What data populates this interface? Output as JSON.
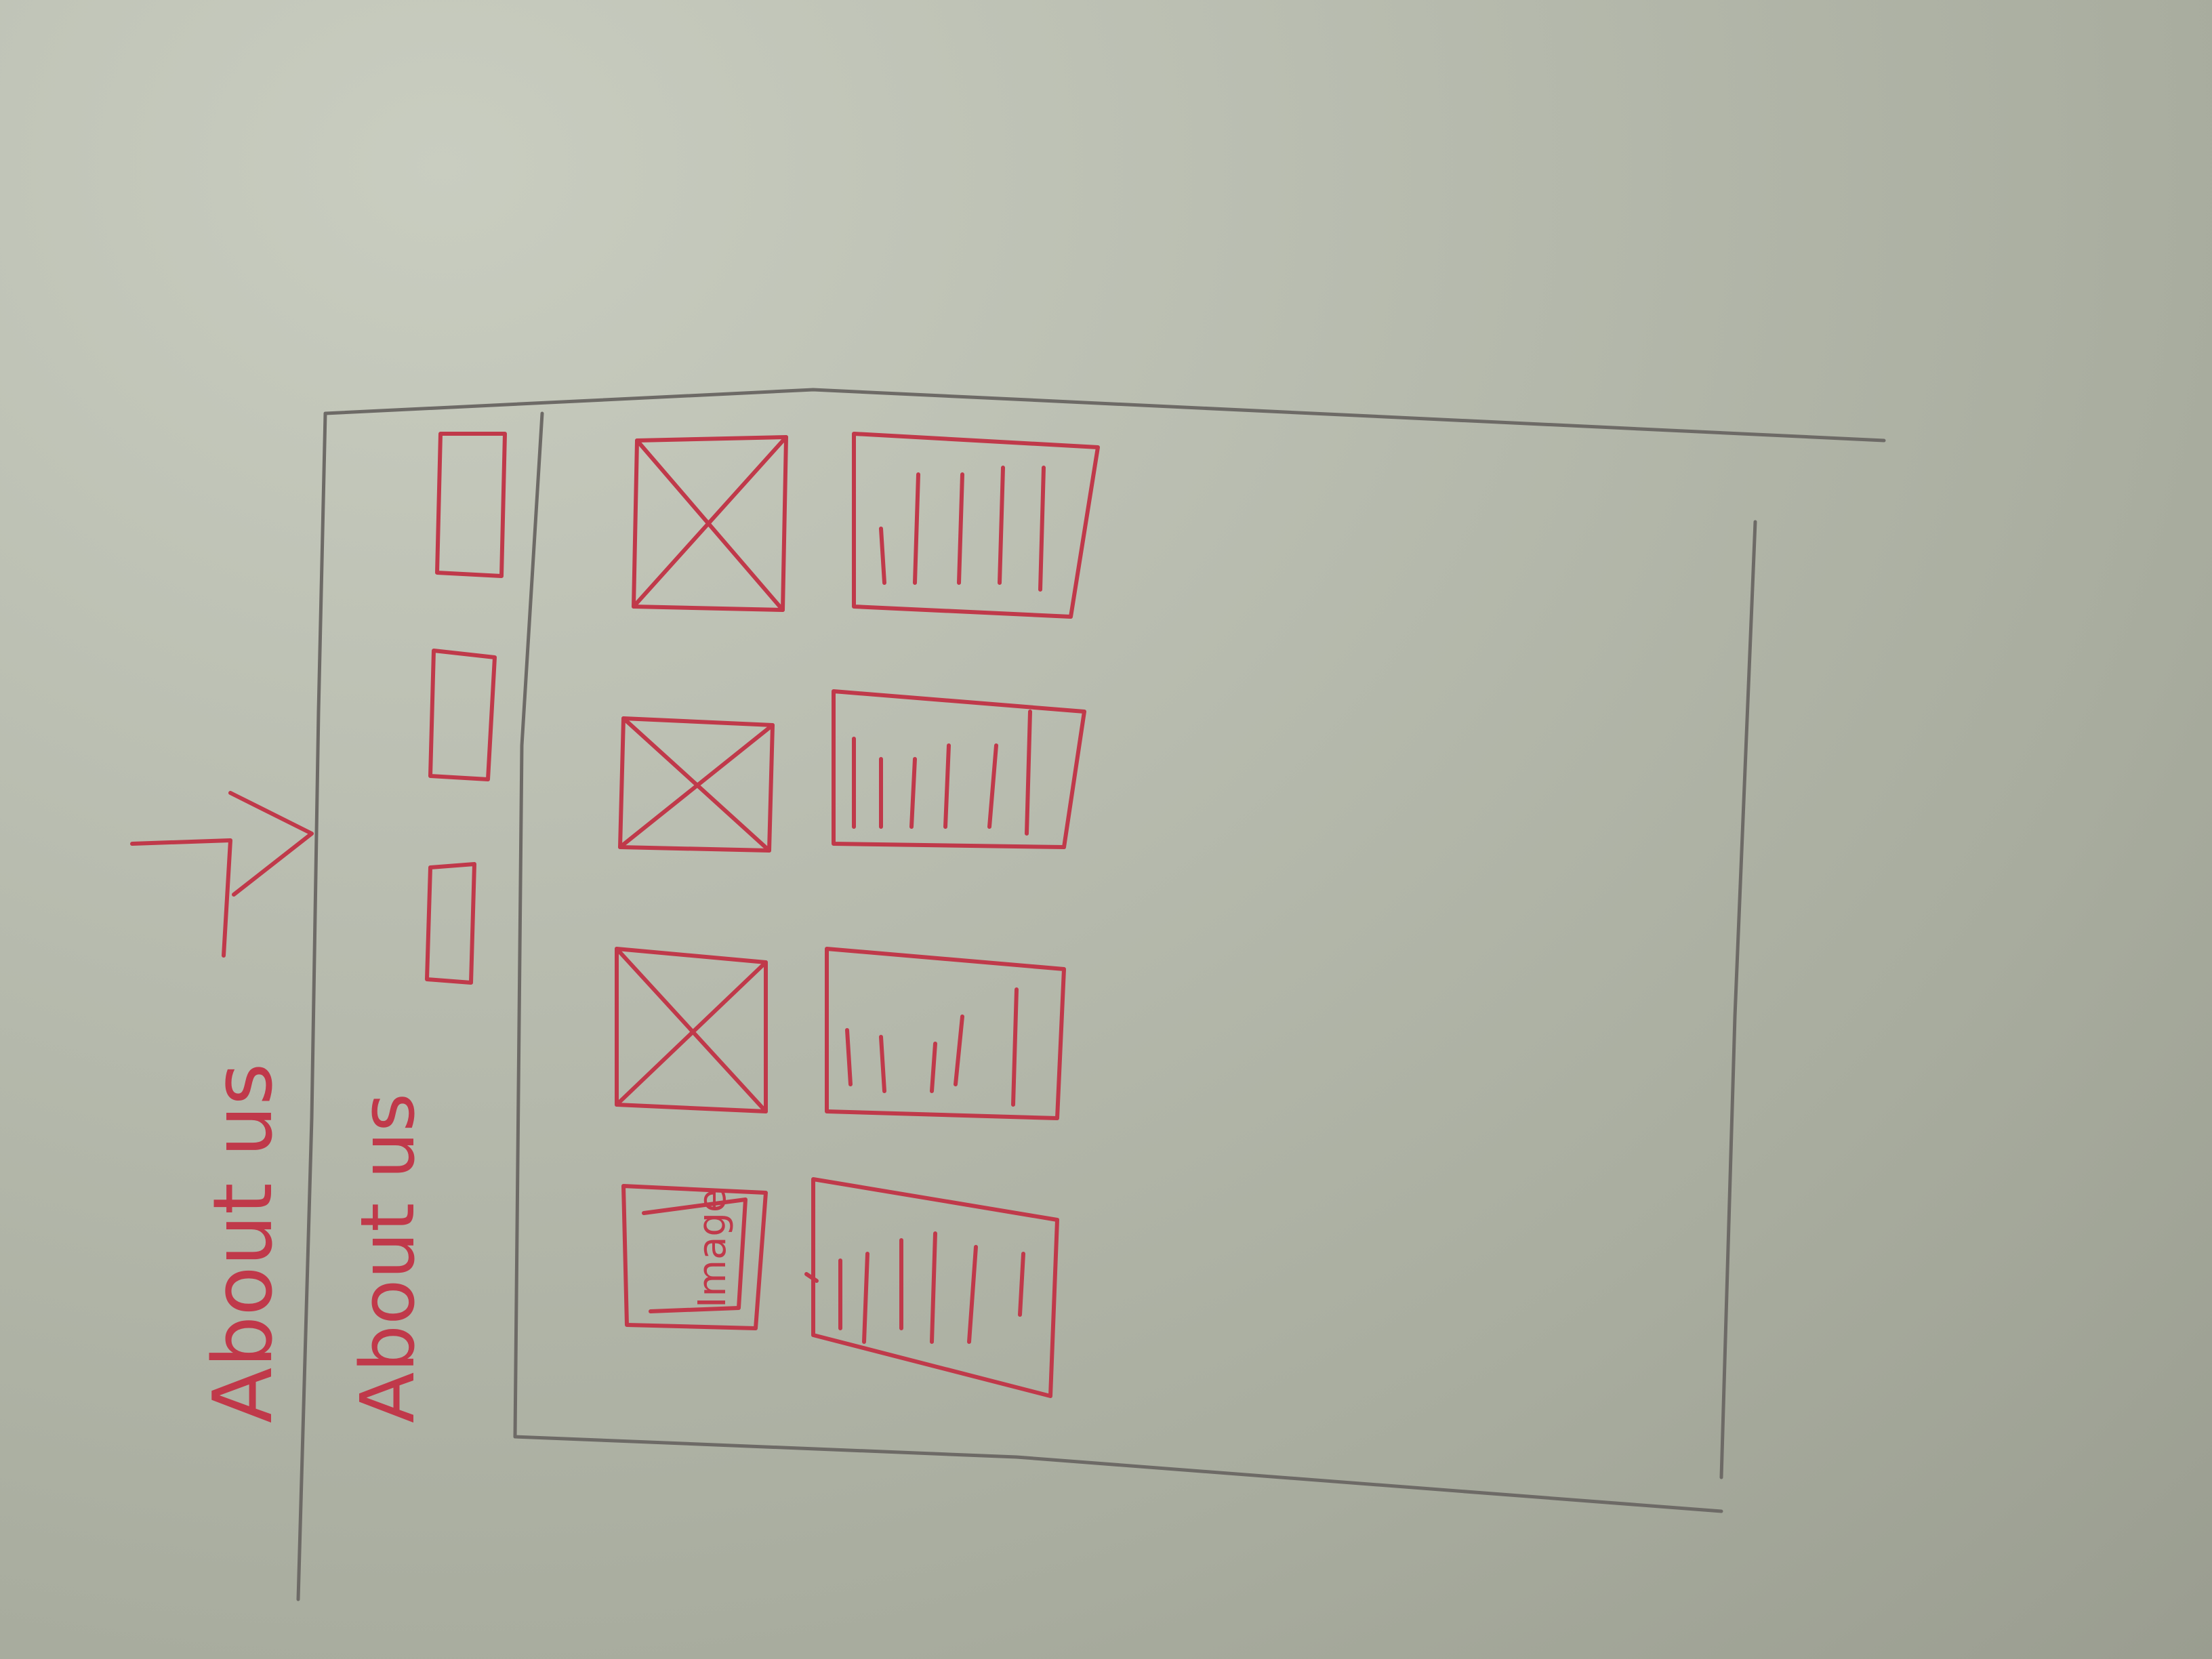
{
  "sketch": {
    "annotation_label": "About us",
    "header_label": "About us",
    "nav_items": [
      {
        "name": "nav-item-1"
      },
      {
        "name": "nav-item-2"
      },
      {
        "name": "nav-item-3"
      }
    ],
    "rows": [
      {
        "image": "placeholder-x",
        "image_label": ""
      },
      {
        "image": "placeholder-x",
        "image_label": ""
      },
      {
        "image": "placeholder-x",
        "image_label": ""
      },
      {
        "image": "placeholder-text",
        "image_label": "Image"
      }
    ]
  },
  "colors": {
    "paper": "#b9bdb0",
    "pencil": "#6d6a66",
    "marker": "#c0394a"
  }
}
